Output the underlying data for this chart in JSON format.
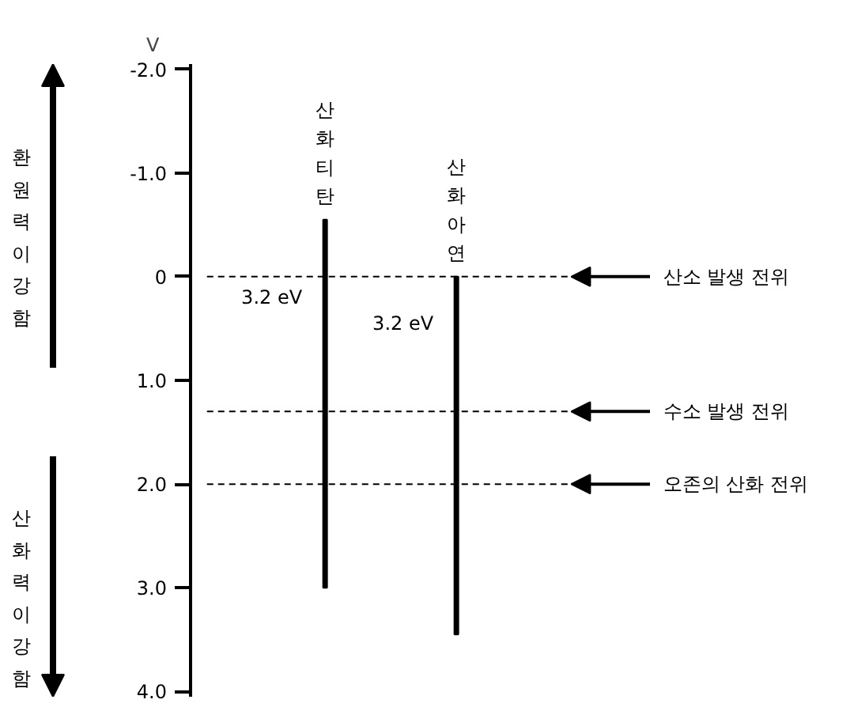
{
  "chart_data": {
    "type": "bar",
    "ylabel": "V",
    "categories": [
      "산화티탄",
      "산화아연"
    ],
    "base": [
      -0.55,
      0
    ],
    "values": [
      3.55,
      3.45
    ],
    "color": "#000000",
    "ylim": [
      4.05,
      -2.05
    ],
    "yticks": [
      {
        "value": -2,
        "label": "-2.0"
      },
      {
        "value": -1,
        "label": "-1.0"
      },
      0,
      {
        "value": 1,
        "label": "1.0"
      },
      {
        "value": 2,
        "label": "2.0"
      },
      {
        "value": 3,
        "label": "3.0"
      },
      {
        "value": 4,
        "label": "4.0"
      }
    ],
    "grid": false,
    "ref_lines": [
      {
        "axis": "y",
        "value": 0,
        "label": "산소 발생 전위",
        "line_style": "dashed"
      },
      {
        "axis": "y",
        "value": 1.3,
        "label": "수소 발생 전위",
        "line_style": "dashed"
      },
      {
        "axis": "y",
        "value": 2.0,
        "label": "오존의 산화 전위",
        "line_style": "dashed"
      }
    ],
    "annotations": [
      "환원력이 강함",
      "산화력이 강함",
      "3.2 eV",
      "3.2 eV"
    ]
  }
}
